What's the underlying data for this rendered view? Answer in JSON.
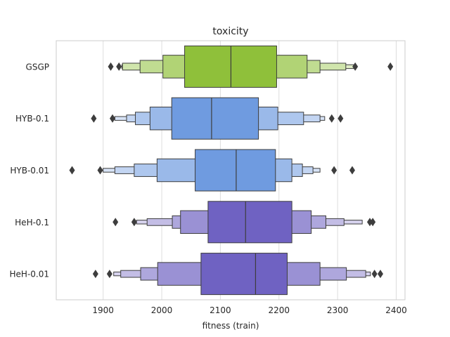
{
  "chart_data": {
    "type": "boxen",
    "title": "toxicity",
    "xlabel": "fitness (train)",
    "ylabel": "",
    "xlim": [
      1820,
      2415
    ],
    "xticks": [
      1900,
      2000,
      2100,
      2200,
      2300,
      2400
    ],
    "grid": true,
    "orientation": "horizontal",
    "categories": [
      "GSGP",
      "HYB-0.1",
      "HYB-0.01",
      "HeH-0.1",
      "HeH-0.01"
    ],
    "series": [
      {
        "category": "GSGP",
        "color": "#8fc03a",
        "median": 2118,
        "boxes": [
          [
            2039,
            2196
          ],
          [
            2002,
            2248
          ],
          [
            1963,
            2270
          ],
          [
            1933,
            2314
          ],
          [
            1932,
            2328
          ]
        ],
        "outliers": [
          1913,
          1927,
          2330,
          2390
        ]
      },
      {
        "category": "HYB-0.1",
        "color": "#6f9be0",
        "median": 2085,
        "boxes": [
          [
            2017,
            2165
          ],
          [
            1980,
            2198
          ],
          [
            1955,
            2242
          ],
          [
            1940,
            2270
          ],
          [
            1920,
            2278
          ]
        ],
        "outliers": [
          1884,
          1916,
          2290,
          2305
        ]
      },
      {
        "category": "HYB-0.01",
        "color": "#6f9be0",
        "median": 2127,
        "boxes": [
          [
            2057,
            2194
          ],
          [
            1992,
            2222
          ],
          [
            1953,
            2240
          ],
          [
            1920,
            2258
          ],
          [
            1900,
            2270
          ]
        ],
        "outliers": [
          1847,
          1895,
          2294,
          2325
        ]
      },
      {
        "category": "HeH-0.1",
        "color": "#6f62c2",
        "median": 2143,
        "boxes": [
          [
            2079,
            2222
          ],
          [
            2032,
            2255
          ],
          [
            2018,
            2280
          ],
          [
            1975,
            2311
          ],
          [
            1957,
            2342
          ]
        ],
        "outliers": [
          1921,
          1953,
          2355,
          2360
        ]
      },
      {
        "category": "HeH-0.01",
        "color": "#6f62c2",
        "median": 2160,
        "boxes": [
          [
            2067,
            2214
          ],
          [
            1993,
            2270
          ],
          [
            1964,
            2315
          ],
          [
            1930,
            2348
          ],
          [
            1918,
            2356
          ]
        ],
        "outliers": [
          1887,
          1911,
          2363,
          2373
        ]
      }
    ]
  }
}
